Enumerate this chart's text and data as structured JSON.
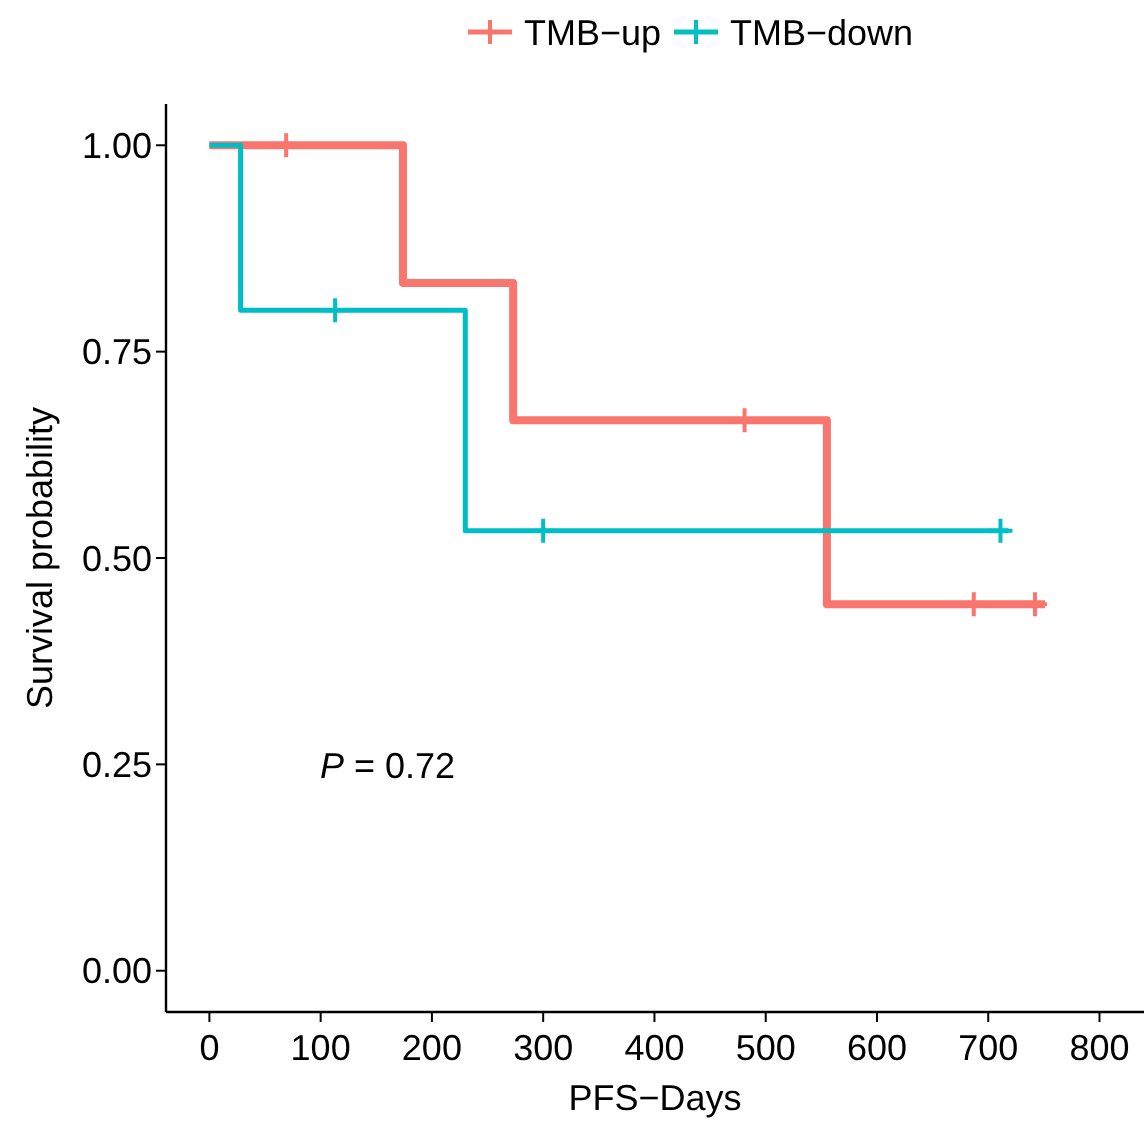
{
  "chart_data": {
    "type": "step",
    "xlabel": "PFS−Days",
    "ylabel": "Survival probability",
    "xlim": [
      -39,
      840
    ],
    "xticks": [
      0,
      100,
      200,
      300,
      400,
      500,
      600,
      700,
      800
    ],
    "ylim": [
      -0.05,
      1.05
    ],
    "yticks": [
      {
        "value": 0,
        "label": "0.00"
      },
      {
        "value": 0.25,
        "label": "0.25"
      },
      {
        "value": 0.5,
        "label": "0.50"
      },
      {
        "value": 0.75,
        "label": "0.75"
      },
      {
        "value": 1,
        "label": "1.00"
      }
    ],
    "grid": false,
    "legend": "top",
    "line_style": "solid",
    "annotations": [
      "P = 0.72"
    ],
    "series": [
      {
        "name": "TMB−up",
        "color": "#f8766d",
        "x": [
          0,
          174,
          273,
          555,
          751
        ],
        "values": [
          1,
          0.833,
          0.667,
          0.444,
          0.444
        ]
      },
      {
        "name": "TMB−down",
        "color": "#00bfc4",
        "x": [
          0,
          28,
          230,
          718
        ],
        "values": [
          1,
          0.8,
          0.533,
          0.533
        ]
      },
      {
        "type": "scatter",
        "marker": "cross",
        "color": "#f8766d",
        "x": [
          69,
          481,
          687,
          742
        ],
        "values": [
          1,
          0.667,
          0.444,
          0.444
        ]
      },
      {
        "type": "scatter",
        "marker": "cross",
        "color": "#00bfc4",
        "x": [
          113,
          300,
          711
        ],
        "values": [
          0.8,
          0.533,
          0.533
        ]
      }
    ]
  }
}
